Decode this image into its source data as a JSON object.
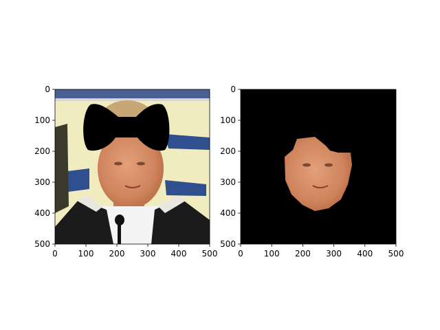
{
  "chart_data": [
    {
      "type": "image",
      "title": "",
      "xlabel": "",
      "ylabel": "",
      "xlim": [
        0,
        500
      ],
      "ylim": [
        500,
        0
      ],
      "xticks": [
        0,
        100,
        200,
        300,
        400,
        500
      ],
      "yticks": [
        0,
        100,
        200,
        300,
        400,
        500
      ],
      "grid": false,
      "content": "photo of a man's face with a black bow-tie shaped mask over the top of the head"
    },
    {
      "type": "image",
      "title": "",
      "xlabel": "",
      "ylabel": "",
      "xlim": [
        0,
        500
      ],
      "ylim": [
        500,
        0
      ],
      "xticks": [
        0,
        100,
        200,
        300,
        400,
        500
      ],
      "yticks": [
        0,
        100,
        200,
        300,
        400,
        500
      ],
      "grid": false,
      "content": "segmented face region on a black background"
    }
  ],
  "colors": {
    "photo_background": "#f1ecc0",
    "mask": "#000000",
    "skin": "#d48a62",
    "banner_blue": "#2f4f8f",
    "jacket": "#1b1b1b",
    "shirt": "#f4f4f4"
  }
}
